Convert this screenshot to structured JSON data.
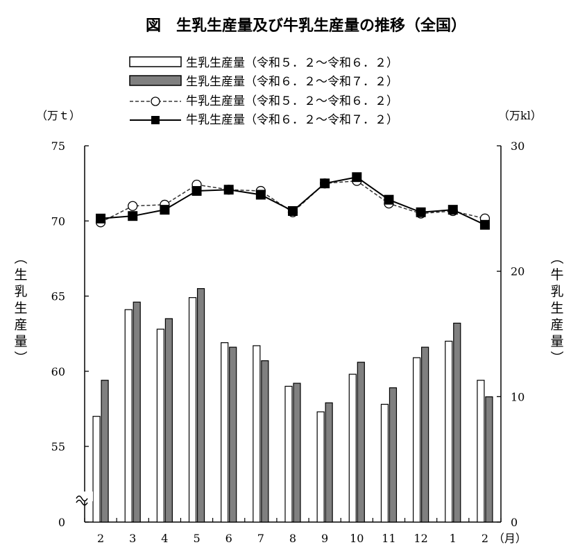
{
  "chart_data": {
    "type": "bar+line",
    "title": "図　生乳生産量及び牛乳生産量の推移（全国）",
    "categories": [
      "2",
      "3",
      "4",
      "5",
      "6",
      "7",
      "8",
      "9",
      "10",
      "11",
      "12",
      "1",
      "2"
    ],
    "x_unit": "（月）",
    "left_axis": {
      "unit": "（万ｔ）",
      "label": "生乳生産量",
      "ticks": [
        "0",
        "55",
        "60",
        "65",
        "70",
        "75"
      ],
      "range": [
        55,
        75
      ],
      "broken": true
    },
    "right_axis": {
      "unit": "（万kl）",
      "label": "牛乳生産量",
      "ticks": [
        "0",
        "10",
        "20",
        "30"
      ],
      "range": [
        0,
        30
      ]
    },
    "bar_series": [
      {
        "name": "生乳生産量（令和５．２～令和６．２）",
        "color": "#ffffff",
        "values": [
          57.0,
          64.1,
          62.8,
          64.9,
          61.9,
          61.7,
          59.0,
          57.3,
          59.8,
          57.8,
          60.9,
          62.0,
          59.4
        ]
      },
      {
        "name": "生乳生産量（令和６．２～令和７．２）",
        "color": "#808080",
        "values": [
          59.4,
          64.6,
          63.5,
          65.5,
          61.6,
          60.7,
          59.2,
          57.9,
          60.6,
          58.9,
          61.6,
          63.2,
          58.3
        ]
      }
    ],
    "line_series": [
      {
        "name": "牛乳生産量（令和５．２～令和６．２）",
        "style": "dashed-open-circle",
        "values": [
          23.9,
          25.2,
          25.3,
          26.9,
          26.5,
          26.4,
          24.7,
          27.0,
          27.2,
          25.4,
          24.6,
          24.8,
          24.2
        ]
      },
      {
        "name": "牛乳生産量（令和６．２～令和７．２）",
        "style": "solid-filled-square",
        "values": [
          24.2,
          24.4,
          24.9,
          26.4,
          26.5,
          26.1,
          24.8,
          27.0,
          27.5,
          25.7,
          24.7,
          24.9,
          23.7
        ]
      }
    ]
  }
}
